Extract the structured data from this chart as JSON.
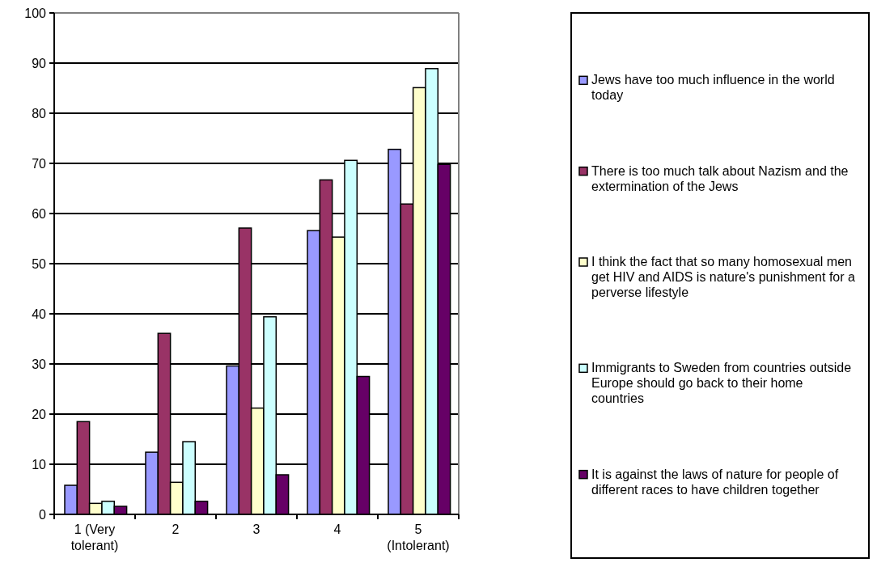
{
  "chart_data": {
    "type": "bar",
    "categories": [
      "1 (Very tolerant)",
      "2",
      "3",
      "4",
      "5 (Intolerant)"
    ],
    "series": [
      {
        "name": "Jews have too much influence in the world today",
        "color": "#9999ff",
        "values": [
          5.8,
          12.4,
          29.6,
          56.6,
          72.8
        ]
      },
      {
        "name": "There is too much talk about Nazism and the extermination of the Jews",
        "color": "#993366",
        "values": [
          18.5,
          36.1,
          57.1,
          66.7,
          61.9
        ]
      },
      {
        "name": "I think the fact that so many homosexual men get HIV and AIDS is nature's punishment for a perverse lifestyle",
        "color": "#ffffcc",
        "values": [
          2.2,
          6.4,
          21.2,
          55.3,
          85.1
        ]
      },
      {
        "name": "Immigrants to Sweden from countries outside Europe should go back to their home countries",
        "color": "#ccffff",
        "values": [
          2.6,
          14.5,
          39.4,
          70.6,
          88.9
        ]
      },
      {
        "name": "It is against the laws of nature for people of different races to have children together",
        "color": "#660066",
        "values": [
          1.6,
          2.6,
          7.9,
          27.5,
          69.8
        ]
      }
    ],
    "ylim": [
      0,
      100
    ],
    "yticks": [
      0,
      10,
      20,
      30,
      40,
      50,
      60,
      70,
      80,
      90,
      100
    ],
    "grid": "y",
    "legend": "right"
  }
}
